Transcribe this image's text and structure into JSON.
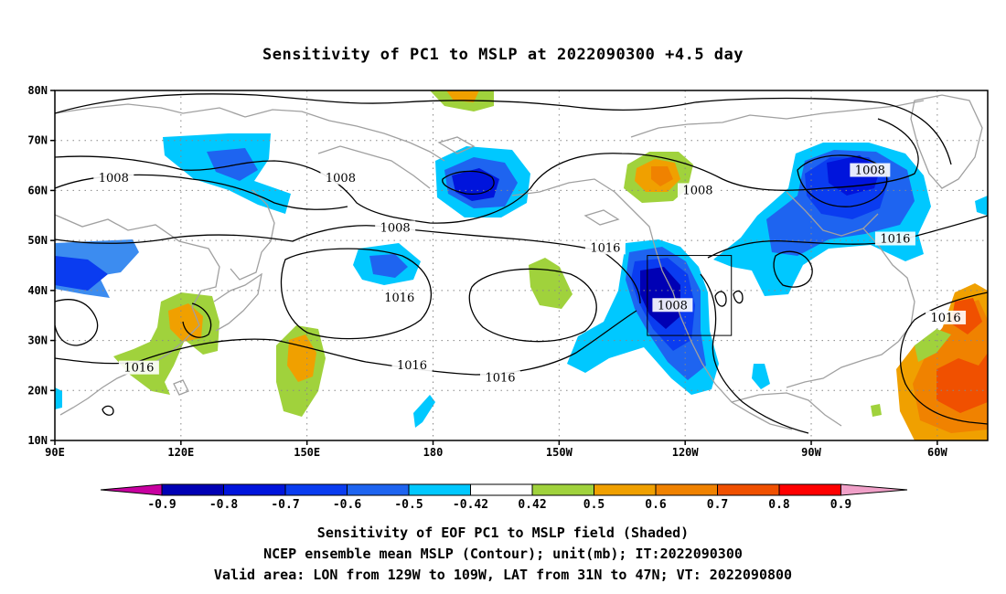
{
  "title": "Sensitivity of PC1 to MSLP at 2022090300 +4.5 day",
  "map": {
    "lon_ticks": [
      {
        "lon": 90,
        "label": "90E"
      },
      {
        "lon": 120,
        "label": "120E"
      },
      {
        "lon": 150,
        "label": "150E"
      },
      {
        "lon": 180,
        "label": "180"
      },
      {
        "lon": 210,
        "label": "150W"
      },
      {
        "lon": 240,
        "label": "120W"
      },
      {
        "lon": 270,
        "label": "90W"
      },
      {
        "lon": 300,
        "label": "60W"
      }
    ],
    "lat_ticks": [
      {
        "lat": 80,
        "label": "80N"
      },
      {
        "lat": 70,
        "label": "70N"
      },
      {
        "lat": 60,
        "label": "60N"
      },
      {
        "lat": 50,
        "label": "50N"
      },
      {
        "lat": 40,
        "label": "40N"
      },
      {
        "lat": 30,
        "label": "30N"
      },
      {
        "lat": 20,
        "label": "20N"
      },
      {
        "lat": 10,
        "label": "10N"
      }
    ],
    "lon_range": [
      90,
      312
    ],
    "lat_range": [
      10,
      80
    ],
    "valid_box": {
      "lon_min": 231,
      "lon_max": 251,
      "lat_min": 31,
      "lat_max": 47
    },
    "contour_labels": [
      {
        "text": "1008",
        "lon": 104,
        "lat": 62.5
      },
      {
        "text": "1008",
        "lon": 158,
        "lat": 62.5
      },
      {
        "text": "1008",
        "lon": 171,
        "lat": 52.5
      },
      {
        "text": "1008",
        "lon": 237,
        "lat": 37
      },
      {
        "text": "1008",
        "lon": 243,
        "lat": 60
      },
      {
        "text": "1008",
        "lon": 284,
        "lat": 64
      },
      {
        "text": "1016",
        "lon": 221,
        "lat": 48.5
      },
      {
        "text": "1016",
        "lon": 290,
        "lat": 50.3
      },
      {
        "text": "1016",
        "lon": 302,
        "lat": 34.5
      },
      {
        "text": "1016",
        "lon": 172,
        "lat": 38.5
      },
      {
        "text": "1016",
        "lon": 110,
        "lat": 24.5
      },
      {
        "text": "1016",
        "lon": 175,
        "lat": 25
      },
      {
        "text": "1016",
        "lon": 196,
        "lat": 22.5
      }
    ],
    "colors": {
      "neg_09": "#0000b4",
      "neg_08": "#0014dc",
      "neg_07": "#0a3cf0",
      "neg_06": "#1e64f0",
      "neg_05": "#3c8cf0",
      "neg_042": "#00c8ff",
      "pos_042": "#a0d23c",
      "pos_05": "#f0a000",
      "pos_06": "#f08200",
      "pos_07": "#f05000",
      "pos_08": "#ff2800",
      "pos_09": "#ff0000",
      "under": "#c800a0",
      "over": "#f0a0c8",
      "coast": "#a0a0a0"
    }
  },
  "colorbar": {
    "labels": [
      "-0.9",
      "-0.8",
      "-0.7",
      "-0.6",
      "-0.5",
      "-0.42",
      "0.42",
      "0.5",
      "0.6",
      "0.7",
      "0.8",
      "0.9"
    ]
  },
  "captions": [
    "Sensitivity of EOF PC1 to MSLP field (Shaded)",
    "NCEP ensemble mean MSLP (Contour); unit(mb); IT:2022090300",
    "Valid area: LON from 129W to 109W, LAT from 31N to 47N; VT: 2022090800"
  ]
}
